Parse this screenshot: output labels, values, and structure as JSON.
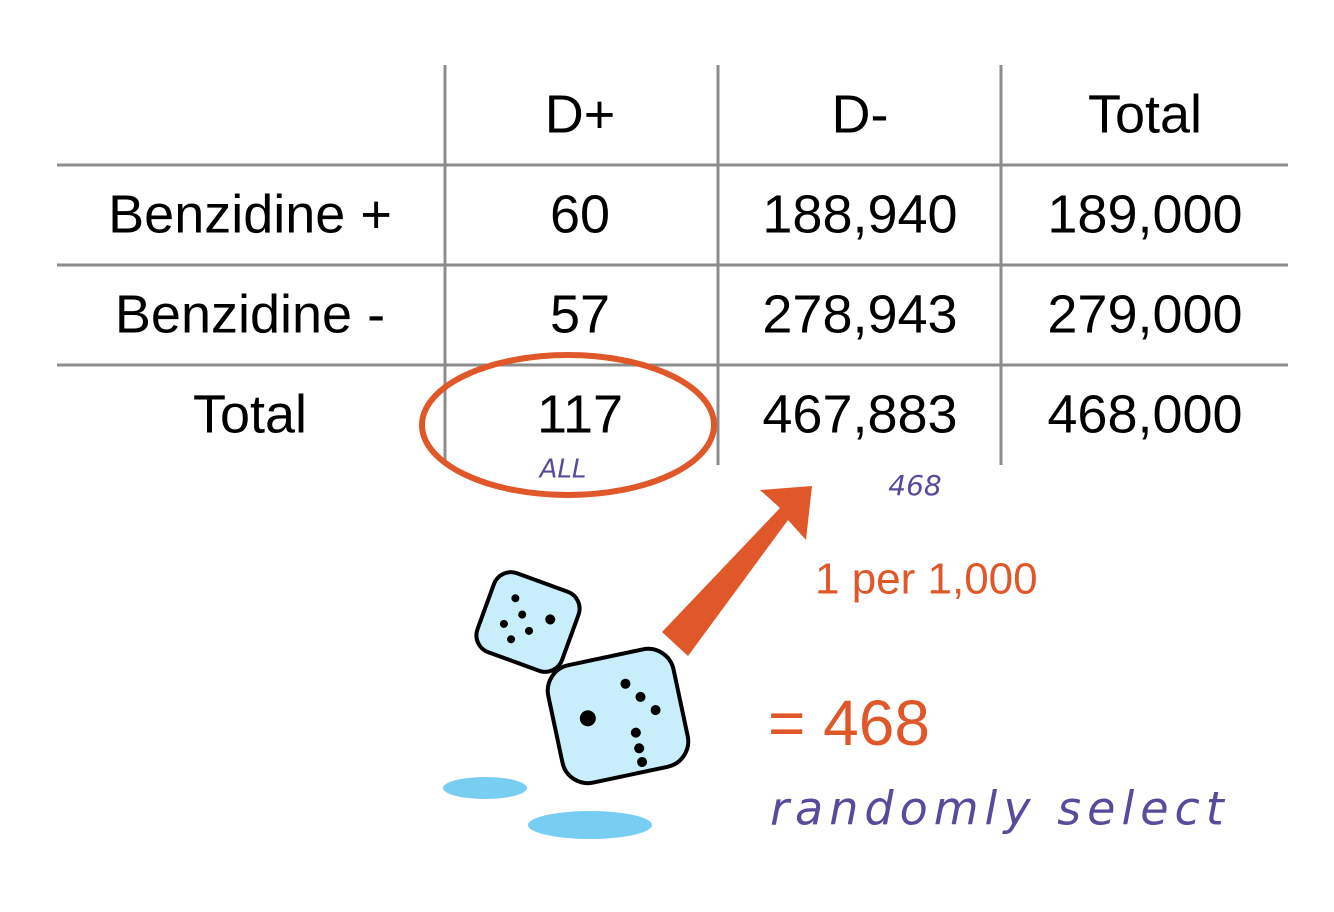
{
  "table": {
    "columns": [
      "D+",
      "D-",
      "Total"
    ],
    "rows": [
      {
        "label": "Benzidine +",
        "cells": [
          "60",
          "188,940",
          "189,000"
        ]
      },
      {
        "label": "Benzidine -",
        "cells": [
          "57",
          "278,943",
          "279,000"
        ]
      },
      {
        "label": "Total",
        "cells": [
          "117",
          "467,883",
          "468,000"
        ]
      }
    ]
  },
  "annotations": {
    "circle_note": "ALL",
    "sample_note": "468",
    "rate": "1 per 1,000",
    "result": "= 468",
    "method": "randomly select"
  }
}
